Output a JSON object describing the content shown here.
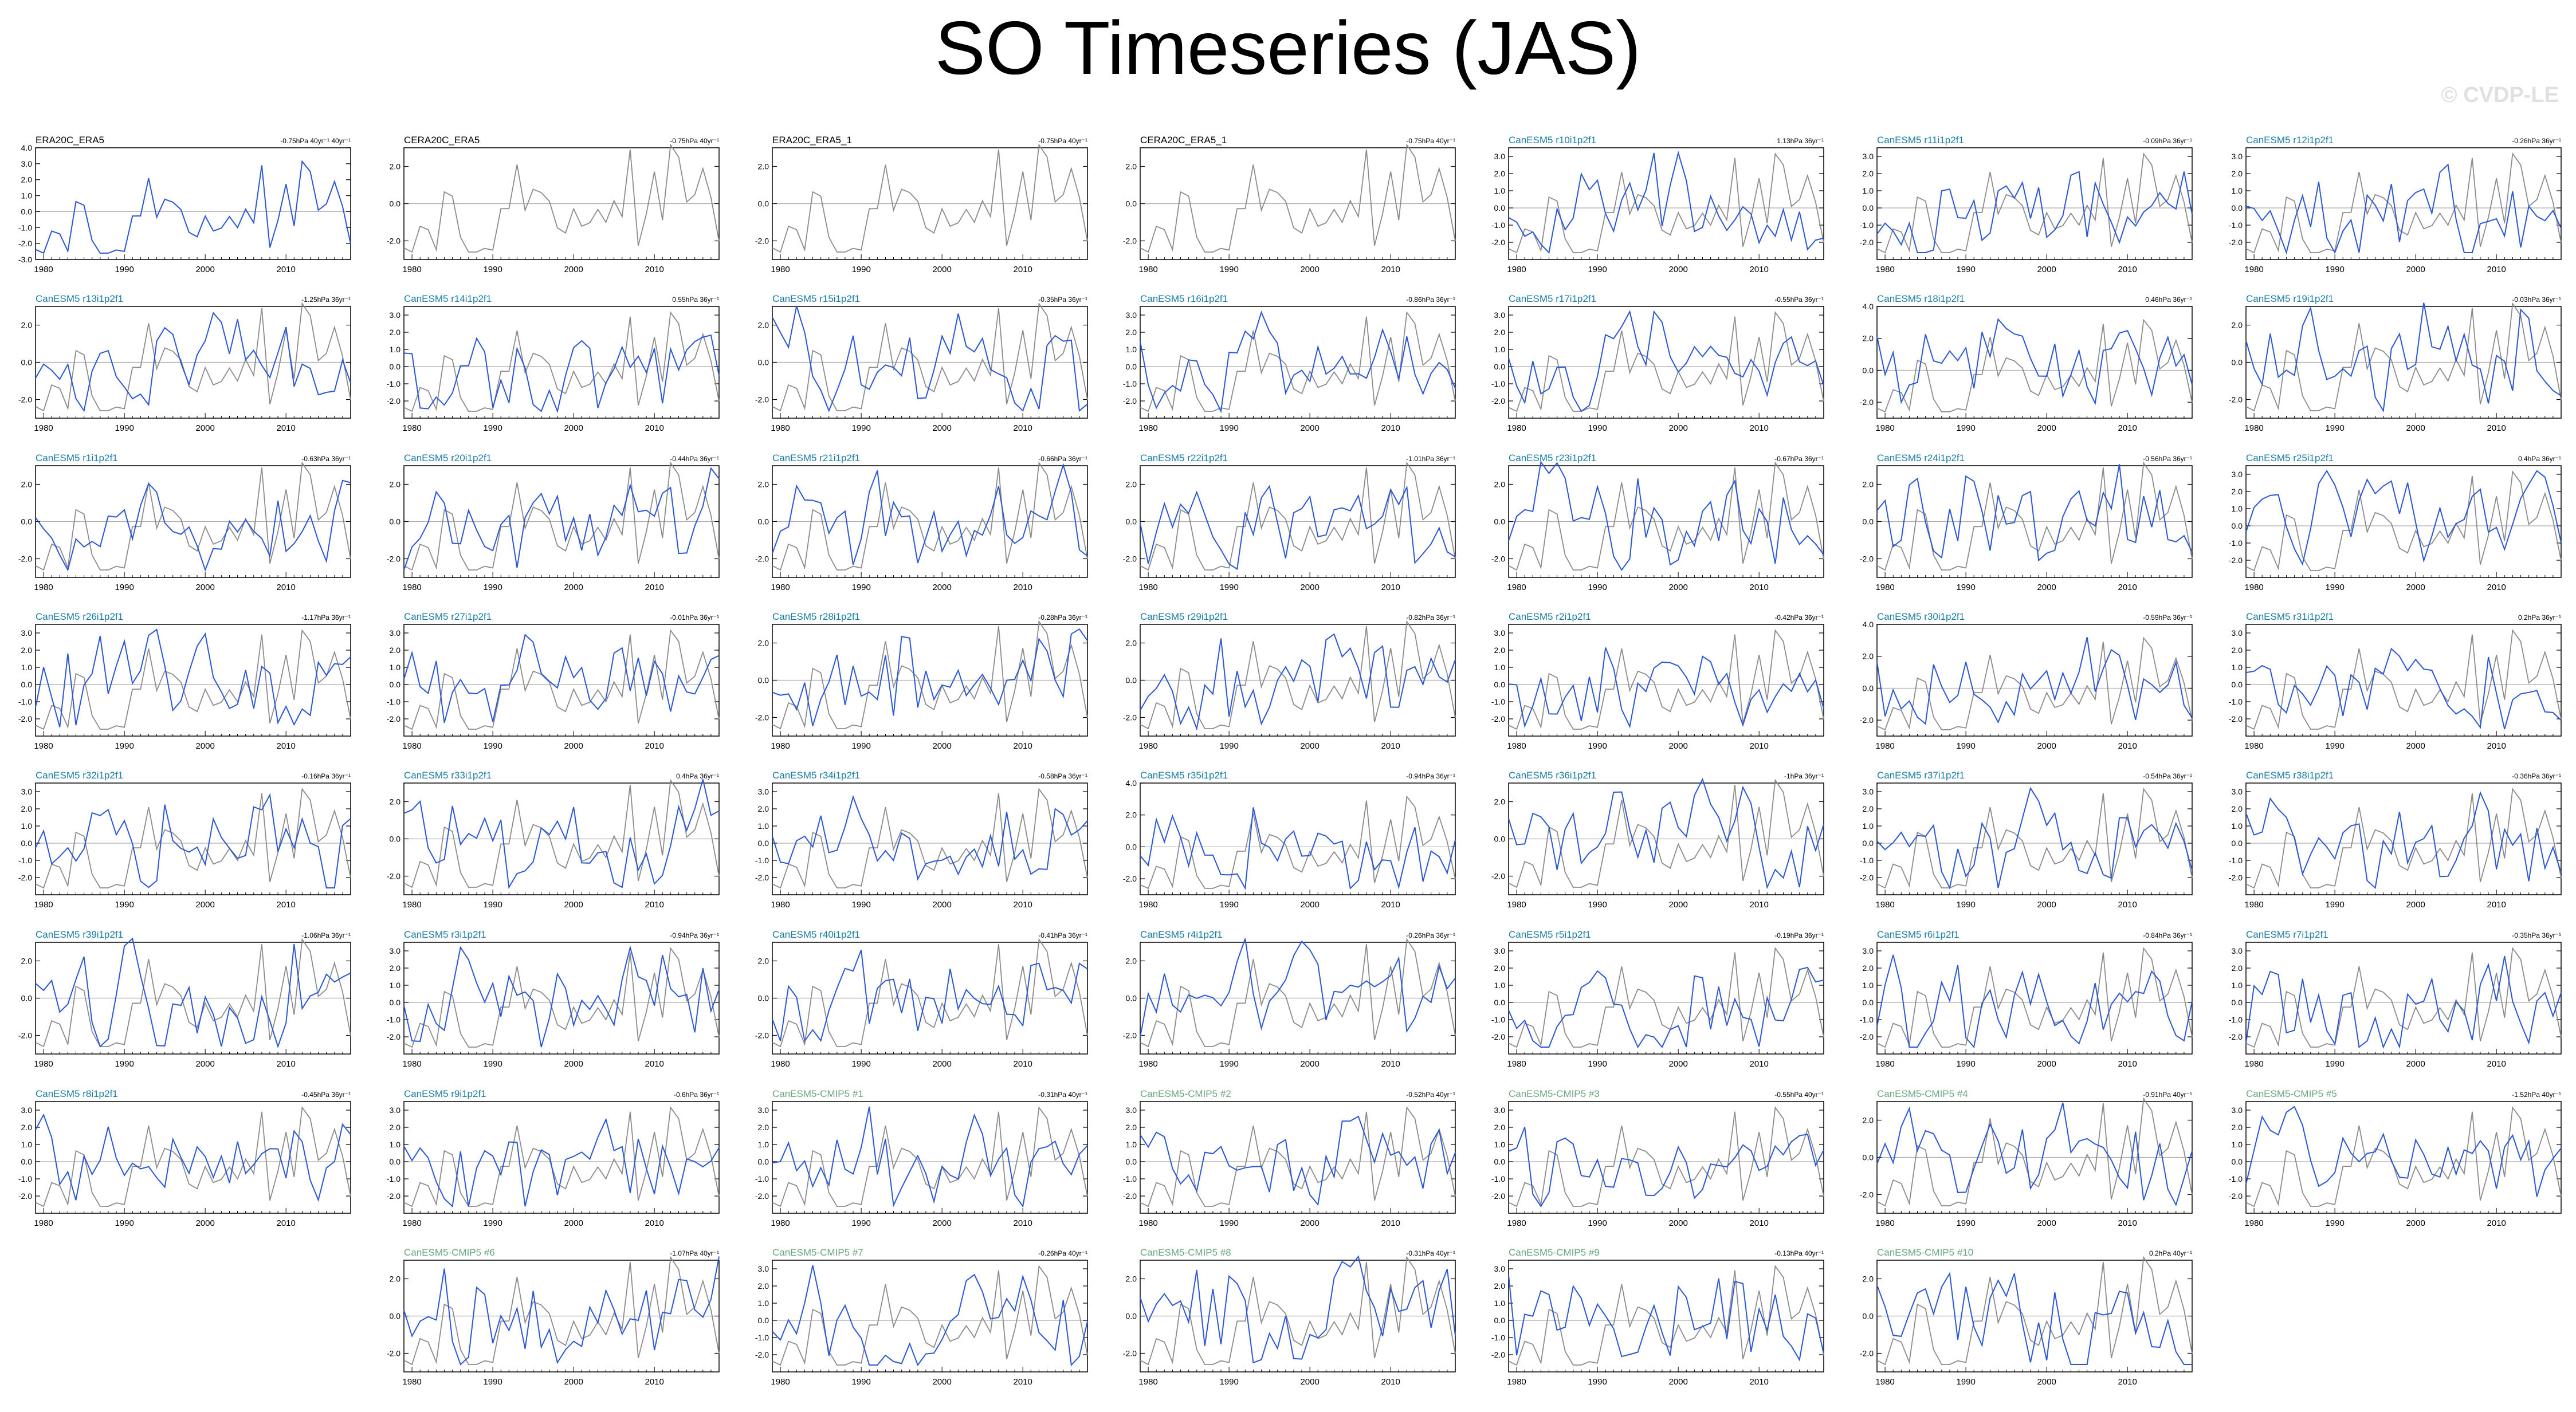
{
  "title": "SO Timeseries (JAS)",
  "watermark": "© CVDP-LE",
  "colors": {
    "obs_line": "#2b56d6",
    "comparison_line": "#8c8c8c",
    "zero_line": "#aaaaaa",
    "label_obs": "#000000",
    "label_canesm5": "#1a7ca3",
    "label_cmip5": "#6aa77f"
  },
  "x_tick_labels": [
    "1980",
    "1990",
    "2000",
    "2010"
  ],
  "chart_data": {
    "type": "line",
    "x_range": [
      1979,
      2018
    ],
    "panels": [
      {
        "label": "ERA20C_ERA5",
        "trend": "-0.75hPa 40yr⁻¹ 40yr⁻¹",
        "kind": "obs",
        "yticks": [
          "4.0",
          "3.0",
          "2.0",
          "1.0",
          "0.0",
          "-1.0",
          "-2.0",
          "-3.0"
        ],
        "ylim": [
          -3,
          4
        ]
      },
      {
        "label": "CERA20C_ERA5",
        "trend": "-0.75hPa 40yr⁻¹",
        "kind": "obs",
        "yticks": [
          "2.0",
          "0.0",
          "-2.0"
        ],
        "ylim": [
          -3,
          3
        ]
      },
      {
        "label": "ERA20C_ERA5_1",
        "trend": "-0.75hPa 40yr⁻¹",
        "kind": "obs",
        "yticks": [
          "2.0",
          "0.0",
          "-2.0"
        ],
        "ylim": [
          -3,
          3
        ]
      },
      {
        "label": "CERA20C_ERA5_1",
        "trend": "-0.75hPa 40yr⁻¹",
        "kind": "obs",
        "yticks": [
          "2.0",
          "0.0",
          "-2.0"
        ],
        "ylim": [
          -3,
          3
        ]
      },
      {
        "label": "CanESM5 r10i1p2f1",
        "trend": "1.13hPa 36yr⁻¹",
        "kind": "canesm5",
        "yticks": [
          "3.0",
          "2.0",
          "1.0",
          "0.0",
          "-1.0",
          "-2.0"
        ],
        "ylim": [
          -3,
          3.5
        ]
      },
      {
        "label": "CanESM5 r11i1p2f1",
        "trend": "-0.09hPa 36yr⁻¹",
        "kind": "canesm5",
        "yticks": [
          "3.0",
          "2.0",
          "1.0",
          "0.0",
          "-1.0",
          "-2.0"
        ],
        "ylim": [
          -3,
          3.5
        ]
      },
      {
        "label": "CanESM5 r12i1p2f1",
        "trend": "-0.26hPa 36yr⁻¹",
        "kind": "canesm5",
        "yticks": [
          "3.0",
          "2.0",
          "1.0",
          "0.0",
          "-1.0",
          "-2.0"
        ],
        "ylim": [
          -3,
          3.5
        ]
      },
      {
        "label": "CanESM5 r13i1p2f1",
        "trend": "-1.25hPa 36yr⁻¹",
        "kind": "canesm5",
        "yticks": [
          "2.0",
          "0.0",
          "-2.0"
        ],
        "ylim": [
          -3,
          3
        ]
      },
      {
        "label": "CanESM5 r14i1p2f1",
        "trend": "0.55hPa 36yr⁻¹",
        "kind": "canesm5",
        "yticks": [
          "3.0",
          "2.0",
          "1.0",
          "0.0",
          "-1.0",
          "-2.0"
        ],
        "ylim": [
          -3,
          3.5
        ]
      },
      {
        "label": "CanESM5 r15i1p2f1",
        "trend": "-0.35hPa 36yr⁻¹",
        "kind": "canesm5",
        "yticks": [
          "2.0",
          "0.0",
          "-2.0"
        ],
        "ylim": [
          -3,
          3
        ]
      },
      {
        "label": "CanESM5 r16i1p2f1",
        "trend": "-0.86hPa 36yr⁻¹",
        "kind": "canesm5",
        "yticks": [
          "3.0",
          "2.0",
          "1.0",
          "0.0",
          "-1.0",
          "-2.0"
        ],
        "ylim": [
          -3,
          3.5
        ]
      },
      {
        "label": "CanESM5 r17i1p2f1",
        "trend": "-0.55hPa 36yr⁻¹",
        "kind": "canesm5",
        "yticks": [
          "3.0",
          "2.0",
          "1.0",
          "0.0",
          "-1.0",
          "-2.0"
        ],
        "ylim": [
          -3,
          3.5
        ]
      },
      {
        "label": "CanESM5 r18i1p2f1",
        "trend": "0.46hPa 36yr⁻¹",
        "kind": "canesm5",
        "yticks": [
          "4.0",
          "2.0",
          "0.0",
          "-2.0"
        ],
        "ylim": [
          -3,
          4
        ]
      },
      {
        "label": "CanESM5 r19i1p2f1",
        "trend": "-0.03hPa 36yr⁻¹",
        "kind": "canesm5",
        "yticks": [
          "2.0",
          "0.0",
          "-2.0"
        ],
        "ylim": [
          -3,
          3
        ]
      },
      {
        "label": "CanESM5 r1i1p2f1",
        "trend": "-0.63hPa 36yr⁻¹",
        "kind": "canesm5",
        "yticks": [
          "2.0",
          "0.0",
          "-2.0"
        ],
        "ylim": [
          -3,
          3
        ]
      },
      {
        "label": "CanESM5 r20i1p2f1",
        "trend": "-0.44hPa 36yr⁻¹",
        "kind": "canesm5",
        "yticks": [
          "2.0",
          "0.0",
          "-2.0"
        ],
        "ylim": [
          -3,
          3
        ]
      },
      {
        "label": "CanESM5 r21i1p2f1",
        "trend": "-0.66hPa 36yr⁻¹",
        "kind": "canesm5",
        "yticks": [
          "2.0",
          "0.0",
          "-2.0"
        ],
        "ylim": [
          -3,
          3
        ]
      },
      {
        "label": "CanESM5 r22i1p2f1",
        "trend": "-1.01hPa 36yr⁻¹",
        "kind": "canesm5",
        "yticks": [
          "2.0",
          "0.0",
          "-2.0"
        ],
        "ylim": [
          -3,
          3
        ]
      },
      {
        "label": "CanESM5 r23i1p2f1",
        "trend": "-0.67hPa 36yr⁻¹",
        "kind": "canesm5",
        "yticks": [
          "2.0",
          "0.0",
          "-2.0"
        ],
        "ylim": [
          -3,
          3
        ]
      },
      {
        "label": "CanESM5 r24i1p2f1",
        "trend": "-0.56hPa 36yr⁻¹",
        "kind": "canesm5",
        "yticks": [
          "2.0",
          "0.0",
          "-2.0"
        ],
        "ylim": [
          -3,
          3
        ]
      },
      {
        "label": "CanESM5 r25i1p2f1",
        "trend": "0.4hPa 36yr⁻¹",
        "kind": "canesm5",
        "yticks": [
          "3.0",
          "2.0",
          "1.0",
          "0.0",
          "-1.0",
          "-2.0"
        ],
        "ylim": [
          -3,
          3.5
        ]
      },
      {
        "label": "CanESM5 r26i1p2f1",
        "trend": "-1.17hPa 36yr⁻¹",
        "kind": "canesm5",
        "yticks": [
          "3.0",
          "2.0",
          "1.0",
          "0.0",
          "-1.0",
          "-2.0"
        ],
        "ylim": [
          -3,
          3.5
        ]
      },
      {
        "label": "CanESM5 r27i1p2f1",
        "trend": "-0.01hPa 36yr⁻¹",
        "kind": "canesm5",
        "yticks": [
          "3.0",
          "2.0",
          "1.0",
          "0.0",
          "-1.0",
          "-2.0"
        ],
        "ylim": [
          -3,
          3.5
        ]
      },
      {
        "label": "CanESM5 r28i1p2f1",
        "trend": "-0.28hPa 36yr⁻¹",
        "kind": "canesm5",
        "yticks": [
          "2.0",
          "0.0",
          "-2.0"
        ],
        "ylim": [
          -3,
          3
        ]
      },
      {
        "label": "CanESM5 r29i1p2f1",
        "trend": "-0.82hPa 36yr⁻¹",
        "kind": "canesm5",
        "yticks": [
          "2.0",
          "0.0",
          "-2.0"
        ],
        "ylim": [
          -3,
          3
        ]
      },
      {
        "label": "CanESM5 r2i1p2f1",
        "trend": "-0.42hPa 36yr⁻¹",
        "kind": "canesm5",
        "yticks": [
          "3.0",
          "2.0",
          "1.0",
          "0.0",
          "-1.0",
          "-2.0"
        ],
        "ylim": [
          -3,
          3.5
        ]
      },
      {
        "label": "CanESM5 r30i1p2f1",
        "trend": "-0.59hPa 36yr⁻¹",
        "kind": "canesm5",
        "yticks": [
          "4.0",
          "2.0",
          "0.0",
          "-2.0"
        ],
        "ylim": [
          -3,
          4
        ]
      },
      {
        "label": "CanESM5 r31i1p2f1",
        "trend": "0.2hPa 36yr⁻¹",
        "kind": "canesm5",
        "yticks": [
          "3.0",
          "2.0",
          "1.0",
          "0.0",
          "-1.0",
          "-2.0"
        ],
        "ylim": [
          -3,
          3.5
        ]
      },
      {
        "label": "CanESM5 r32i1p2f1",
        "trend": "-0.16hPa 36yr⁻¹",
        "kind": "canesm5",
        "yticks": [
          "3.0",
          "2.0",
          "1.0",
          "0.0",
          "-1.0",
          "-2.0"
        ],
        "ylim": [
          -3,
          3.5
        ]
      },
      {
        "label": "CanESM5 r33i1p2f1",
        "trend": "0.4hPa 36yr⁻¹",
        "kind": "canesm5",
        "yticks": [
          "2.0",
          "0.0",
          "-2.0"
        ],
        "ylim": [
          -3,
          3
        ]
      },
      {
        "label": "CanESM5 r34i1p2f1",
        "trend": "-0.58hPa 36yr⁻¹",
        "kind": "canesm5",
        "yticks": [
          "3.0",
          "2.0",
          "1.0",
          "0.0",
          "-1.0",
          "-2.0"
        ],
        "ylim": [
          -3,
          3.5
        ]
      },
      {
        "label": "CanESM5 r35i1p2f1",
        "trend": "-0.94hPa 36yr⁻¹",
        "kind": "canesm5",
        "yticks": [
          "4.0",
          "2.0",
          "0.0",
          "-2.0"
        ],
        "ylim": [
          -3,
          4
        ]
      },
      {
        "label": "CanESM5 r36i1p2f1",
        "trend": "-1hPa 36yr⁻¹",
        "kind": "canesm5",
        "yticks": [
          "2.0",
          "0.0",
          "-2.0"
        ],
        "ylim": [
          -3,
          3
        ]
      },
      {
        "label": "CanESM5 r37i1p2f1",
        "trend": "-0.54hPa 36yr⁻¹",
        "kind": "canesm5",
        "yticks": [
          "3.0",
          "2.0",
          "1.0",
          "0.0",
          "-1.0",
          "-2.0"
        ],
        "ylim": [
          -3,
          3.5
        ]
      },
      {
        "label": "CanESM5 r38i1p2f1",
        "trend": "-0.36hPa 36yr⁻¹",
        "kind": "canesm5",
        "yticks": [
          "3.0",
          "2.0",
          "1.0",
          "0.0",
          "-1.0",
          "-2.0"
        ],
        "ylim": [
          -3,
          3.5
        ]
      },
      {
        "label": "CanESM5 r39i1p2f1",
        "trend": "-1.06hPa 36yr⁻¹",
        "kind": "canesm5",
        "yticks": [
          "2.0",
          "0.0",
          "-2.0"
        ],
        "ylim": [
          -3,
          3
        ]
      },
      {
        "label": "CanESM5 r3i1p2f1",
        "trend": "-0.94hPa 36yr⁻¹",
        "kind": "canesm5",
        "yticks": [
          "3.0",
          "2.0",
          "1.0",
          "0.0",
          "-1.0",
          "-2.0"
        ],
        "ylim": [
          -3,
          3.5
        ]
      },
      {
        "label": "CanESM5 r40i1p2f1",
        "trend": "-0.41hPa 36yr⁻¹",
        "kind": "canesm5",
        "yticks": [
          "2.0",
          "0.0",
          "-2.0"
        ],
        "ylim": [
          -3,
          3
        ]
      },
      {
        "label": "CanESM5 r4i1p2f1",
        "trend": "-0.26hPa 36yr⁻¹",
        "kind": "canesm5",
        "yticks": [
          "2.0",
          "0.0",
          "-2.0"
        ],
        "ylim": [
          -3,
          3
        ]
      },
      {
        "label": "CanESM5 r5i1p2f1",
        "trend": "-0.19hPa 36yr⁻¹",
        "kind": "canesm5",
        "yticks": [
          "3.0",
          "2.0",
          "1.0",
          "0.0",
          "-1.0",
          "-2.0"
        ],
        "ylim": [
          -3,
          3.5
        ]
      },
      {
        "label": "CanESM5 r6i1p2f1",
        "trend": "-0.84hPa 36yr⁻¹",
        "kind": "canesm5",
        "yticks": [
          "3.0",
          "2.0",
          "1.0",
          "0.0",
          "-1.0",
          "-2.0"
        ],
        "ylim": [
          -3,
          3.5
        ]
      },
      {
        "label": "CanESM5 r7i1p2f1",
        "trend": "-0.35hPa 36yr⁻¹",
        "kind": "canesm5",
        "yticks": [
          "3.0",
          "2.0",
          "1.0",
          "0.0",
          "-1.0",
          "-2.0"
        ],
        "ylim": [
          -3,
          3.5
        ]
      },
      {
        "label": "CanESM5 r8i1p2f1",
        "trend": "-0.45hPa 36yr⁻¹",
        "kind": "canesm5",
        "yticks": [
          "3.0",
          "2.0",
          "1.0",
          "0.0",
          "-1.0",
          "-2.0"
        ],
        "ylim": [
          -3,
          3.5
        ]
      },
      {
        "label": "CanESM5 r9i1p2f1",
        "trend": "-0.6hPa 36yr⁻¹",
        "kind": "canesm5",
        "yticks": [
          "3.0",
          "2.0",
          "1.0",
          "0.0",
          "-1.0",
          "-2.0"
        ],
        "ylim": [
          -3,
          3.5
        ]
      },
      {
        "label": "CanESM5-CMIP5 #1",
        "trend": "-0.31hPa 40yr⁻¹",
        "kind": "cmip5",
        "yticks": [
          "3.0",
          "2.0",
          "1.0",
          "0.0",
          "-1.0",
          "-2.0"
        ],
        "ylim": [
          -3,
          3.5
        ]
      },
      {
        "label": "CanESM5-CMIP5 #2",
        "trend": "-0.52hPa 40yr⁻¹",
        "kind": "cmip5",
        "yticks": [
          "3.0",
          "2.0",
          "1.0",
          "0.0",
          "-1.0",
          "-2.0"
        ],
        "ylim": [
          -3,
          3.5
        ]
      },
      {
        "label": "CanESM5-CMIP5 #3",
        "trend": "-0.55hPa 40yr⁻¹",
        "kind": "cmip5",
        "yticks": [
          "3.0",
          "2.0",
          "1.0",
          "0.0",
          "-1.0",
          "-2.0"
        ],
        "ylim": [
          -3,
          3.5
        ]
      },
      {
        "label": "CanESM5-CMIP5 #4",
        "trend": "-0.91hPa 40yr⁻¹",
        "kind": "cmip5",
        "yticks": [
          "2.0",
          "0.0",
          "-2.0"
        ],
        "ylim": [
          -3,
          3
        ]
      },
      {
        "label": "CanESM5-CMIP5 #5",
        "trend": "-1.52hPa 40yr⁻¹",
        "kind": "cmip5",
        "yticks": [
          "3.0",
          "2.0",
          "1.0",
          "0.0",
          "-1.0",
          "-2.0"
        ],
        "ylim": [
          -3,
          3.5
        ]
      },
      {
        "label": "CanESM5-CMIP5 #6",
        "trend": "-1.07hPa 40yr⁻¹",
        "kind": "cmip5",
        "yticks": [
          "2.0",
          "0.0",
          "-2.0"
        ],
        "ylim": [
          -3,
          3
        ]
      },
      {
        "label": "CanESM5-CMIP5 #7",
        "trend": "-0.26hPa 40yr⁻¹",
        "kind": "cmip5",
        "yticks": [
          "3.0",
          "2.0",
          "1.0",
          "0.0",
          "-1.0",
          "-2.0"
        ],
        "ylim": [
          -3,
          3.5
        ]
      },
      {
        "label": "CanESM5-CMIP5 #8",
        "trend": "-0.31hPa 40yr⁻¹",
        "kind": "cmip5",
        "yticks": [
          "2.0",
          "0.0",
          "-2.0"
        ],
        "ylim": [
          -3,
          3
        ]
      },
      {
        "label": "CanESM5-CMIP5 #9",
        "trend": "-0.13hPa 40yr⁻¹",
        "kind": "cmip5",
        "yticks": [
          "3.0",
          "2.0",
          "1.0",
          "0.0",
          "-1.0",
          "-2.0"
        ],
        "ylim": [
          -3,
          3.5
        ]
      },
      {
        "label": "CanESM5-CMIP5 #10",
        "trend": "0.2hPa 40yr⁻¹",
        "kind": "cmip5",
        "yticks": [
          "2.0",
          "0.0",
          "-2.0"
        ],
        "ylim": [
          -3,
          3
        ]
      }
    ]
  }
}
